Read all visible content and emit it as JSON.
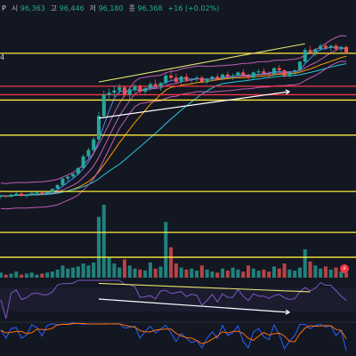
{
  "header": {
    "symbol": "P",
    "open_label": "시",
    "open": "96,363",
    "high_label": "고",
    "high": "96,446",
    "low_label": "저",
    "low": "96,180",
    "close_label": "종",
    "close": "96,368",
    "change": "+16 (+0.02%)"
  },
  "side_label": "4",
  "colors": {
    "background": "#131722",
    "up": "#26a69a",
    "down": "#ef5350",
    "hline_yellow": "#ffeb3b",
    "hline_red": "#f23645",
    "trendline": "#e7e36f",
    "arrow": "#ffffff",
    "ma_fast": "#4a8cff",
    "ma_mid": "#c05db5",
    "ma_slow": "#ff9800",
    "ma_long": "#26c6da",
    "rsi": "#7e57c2",
    "stoch_k": "#2962ff",
    "stoch_d": "#ff6d00"
  },
  "chart_data": {
    "type": "candlestick",
    "candles": [
      [
        10,
        11,
        9,
        10.5
      ],
      [
        10.5,
        11,
        9.5,
        10
      ],
      [
        10,
        11.5,
        9.8,
        11
      ],
      [
        11,
        12,
        10.5,
        11.5
      ],
      [
        11.5,
        12,
        10,
        10.5
      ],
      [
        10.5,
        11,
        9.5,
        10.8
      ],
      [
        10.8,
        12,
        10.5,
        11.8
      ],
      [
        11.8,
        12.5,
        11,
        12
      ],
      [
        12,
        12.3,
        10.8,
        11.2
      ],
      [
        11.2,
        12.5,
        11,
        12.2
      ],
      [
        12.2,
        14,
        12,
        13.8
      ],
      [
        13.8,
        16,
        13.5,
        15.5
      ],
      [
        15.5,
        19,
        15,
        18.5
      ],
      [
        18.5,
        20,
        17,
        19.5
      ],
      [
        19.5,
        21,
        18.5,
        20.8
      ],
      [
        20.8,
        24,
        20.5,
        23.5
      ],
      [
        23.5,
        30,
        23,
        29
      ],
      [
        29,
        33,
        28,
        32
      ],
      [
        32,
        38,
        31,
        37
      ],
      [
        37,
        50,
        36,
        48
      ],
      [
        48,
        60,
        47,
        58
      ],
      [
        58,
        61,
        55,
        59
      ],
      [
        59,
        62,
        57,
        60
      ],
      [
        60,
        63,
        58,
        61.5
      ],
      [
        61.5,
        62,
        57,
        58
      ],
      [
        58,
        61,
        56,
        60.5
      ],
      [
        60.5,
        63,
        59,
        62
      ],
      [
        62,
        63,
        58.5,
        59.5
      ],
      [
        59.5,
        62,
        58,
        61
      ],
      [
        61,
        64,
        60,
        63
      ],
      [
        63,
        65,
        61,
        62
      ],
      [
        62,
        64,
        60,
        63.5
      ],
      [
        63.5,
        68,
        63,
        67
      ],
      [
        67,
        70,
        65,
        66
      ],
      [
        66,
        68,
        63,
        64
      ],
      [
        64,
        67,
        63,
        66.5
      ],
      [
        66.5,
        68,
        64,
        65
      ],
      [
        65,
        66,
        63,
        65.5
      ],
      [
        65.5,
        67,
        64,
        66
      ],
      [
        66,
        67,
        63.5,
        64
      ],
      [
        64,
        66,
        63,
        65.5
      ],
      [
        65.5,
        67,
        64.5,
        66.5
      ],
      [
        66.5,
        68,
        65,
        65.5
      ],
      [
        65.5,
        68,
        65,
        67.5
      ],
      [
        67.5,
        69,
        66,
        66.5
      ],
      [
        66.5,
        68,
        65,
        67
      ],
      [
        67,
        69,
        66,
        68.5
      ],
      [
        68.5,
        70,
        66.5,
        67
      ],
      [
        67,
        68,
        65,
        66
      ],
      [
        66,
        69,
        65.5,
        68.5
      ],
      [
        68.5,
        70,
        67,
        69
      ],
      [
        69,
        70.5,
        67.5,
        68
      ],
      [
        68,
        69,
        66,
        67.5
      ],
      [
        67.5,
        71,
        67,
        70.5
      ],
      [
        70.5,
        72,
        69,
        69.5
      ],
      [
        69.5,
        70,
        66,
        67
      ],
      [
        67,
        69,
        66,
        68.5
      ],
      [
        68.5,
        70,
        67,
        69.5
      ],
      [
        69.5,
        74,
        69,
        73.5
      ],
      [
        73.5,
        80,
        73,
        79
      ],
      [
        79,
        81,
        77,
        78
      ],
      [
        78,
        80,
        76,
        79.5
      ],
      [
        79.5,
        82,
        78.5,
        81
      ],
      [
        81,
        82,
        79,
        80
      ],
      [
        80,
        81.5,
        78.5,
        81
      ],
      [
        81,
        82,
        79,
        79.5
      ],
      [
        79.5,
        81,
        78,
        80.5
      ],
      [
        80.5,
        81,
        77,
        77.5
      ]
    ],
    "volumes": [
      5,
      3,
      4,
      6,
      3,
      4,
      5,
      3,
      4,
      5,
      6,
      8,
      12,
      9,
      10,
      11,
      14,
      12,
      15,
      60,
      72,
      20,
      14,
      10,
      18,
      12,
      9,
      8,
      7,
      15,
      9,
      11,
      55,
      30,
      14,
      10,
      8,
      9,
      7,
      12,
      8,
      6,
      5,
      9,
      7,
      10,
      8,
      6,
      12,
      9,
      7,
      8,
      6,
      11,
      9,
      14,
      8,
      7,
      10,
      28,
      16,
      12,
      9,
      11,
      8,
      10,
      6,
      5
    ],
    "price_range": [
      0,
      90
    ],
    "horizontal_levels": [
      {
        "value": 77.5,
        "color_key": "hline_yellow"
      },
      {
        "value": 62.0,
        "color_key": "hline_red"
      },
      {
        "value": 58.0,
        "color_key": "hline_red"
      },
      {
        "value": 55.5,
        "color_key": "hline_yellow"
      },
      {
        "value": 39.0,
        "color_key": "hline_yellow"
      },
      {
        "value": 12.5,
        "color_key": "hline_yellow"
      }
    ],
    "volume_levels": [
      0.62,
      0.28
    ],
    "grid": false
  },
  "flag_glyph": "⚡"
}
